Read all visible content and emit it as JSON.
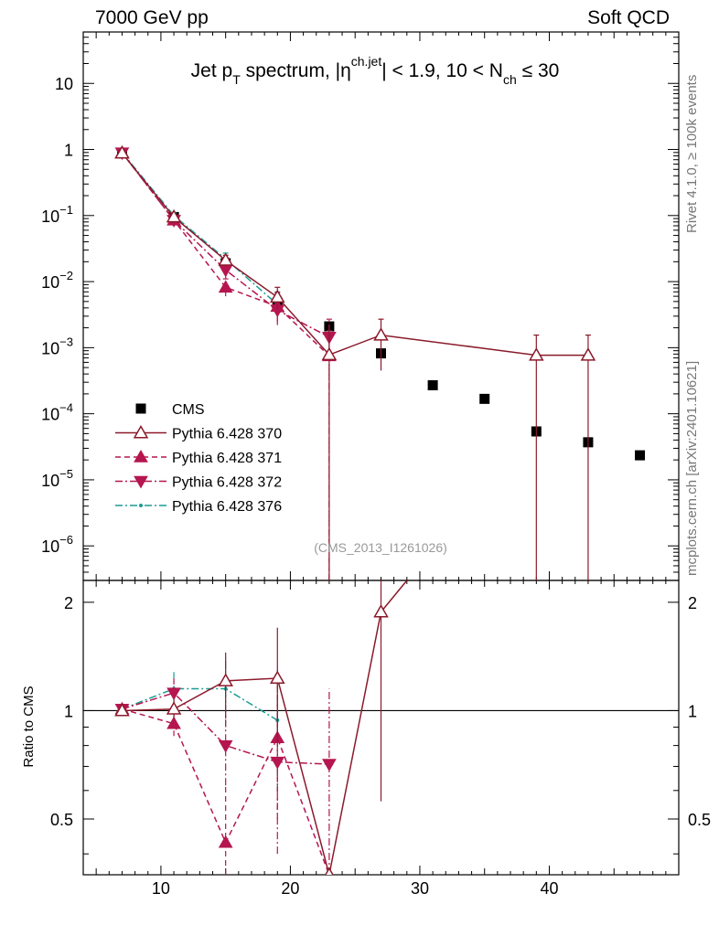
{
  "header": {
    "left": "7000 GeV pp",
    "right": "Soft QCD"
  },
  "side_labels": {
    "top": "Rivet 4.1.0, ≥ 100k events",
    "bottom": "mcplots.cern.ch [arXiv:2401.10621]"
  },
  "chart_data": {
    "type": "scatter",
    "title_parts": {
      "a": "Jet p",
      "a_sub": "T",
      "b": " spectrum, |η",
      "b_sup": "ch.jet",
      "c": "| < 1.9, 10 < N",
      "c_sub": "ch",
      "d": " ≤ 30"
    },
    "watermark": "(CMS_2013_I1261026)",
    "ratio_ylabel": "Ratio to CMS",
    "xlim": [
      4,
      50
    ],
    "ylim_main": [
      3e-07,
      60
    ],
    "ylim_ratio": [
      0.35,
      2.3
    ],
    "x_ticks": [
      10,
      20,
      30,
      40
    ],
    "y_ticks_main": [
      {
        "v": 10,
        "base": "10",
        "exp": ""
      },
      {
        "v": 1,
        "base": "1",
        "exp": ""
      },
      {
        "v": 0.1,
        "base": "10",
        "exp": "−1"
      },
      {
        "v": 0.01,
        "base": "10",
        "exp": "−2"
      },
      {
        "v": 0.001,
        "base": "10",
        "exp": "−3"
      },
      {
        "v": 0.0001,
        "base": "10",
        "exp": "−4"
      },
      {
        "v": 1e-05,
        "base": "10",
        "exp": "−5"
      },
      {
        "v": 1e-06,
        "base": "10",
        "exp": "−6"
      }
    ],
    "y_ticks_ratio": [
      {
        "v": 0.5,
        "label": "0.5"
      },
      {
        "v": 1,
        "label": "1"
      },
      {
        "v": 2,
        "label": "2"
      }
    ],
    "legend": [
      {
        "series": "cms",
        "label": "CMS"
      },
      {
        "series": "p370",
        "label": "Pythia 6.428 370"
      },
      {
        "series": "p371",
        "label": "Pythia 6.428 371"
      },
      {
        "series": "p372",
        "label": "Pythia 6.428 372"
      },
      {
        "series": "p376",
        "label": "Pythia 6.428 376"
      }
    ],
    "cms": {
      "x": [
        7,
        11,
        15,
        19,
        23,
        27,
        31,
        35,
        39,
        43,
        47
      ],
      "y": [
        0.88,
        0.095,
        0.019,
        0.0048,
        0.0021,
        0.00082,
        0.00027,
        0.000168,
        5.4e-05,
        3.7e-05,
        2.35e-05
      ]
    },
    "series": [
      {
        "id": "p370",
        "color": "#8b1a2b",
        "marker": "triangle-open",
        "dash": "",
        "x": [
          7,
          11,
          15,
          19,
          23,
          27,
          39,
          43
        ],
        "y": [
          0.88,
          0.095,
          0.021,
          0.0058,
          0.00078,
          0.00155,
          0.00077,
          0.00077
        ],
        "ylo": [
          0.8,
          0.085,
          0.017,
          0.0038,
          1e-07,
          0.00045,
          1e-07,
          1e-07
        ],
        "yhi": [
          0.96,
          0.105,
          0.025,
          0.0082,
          0.0018,
          0.0027,
          0.00155,
          0.00155
        ],
        "ratio": [
          1.0,
          1.01,
          1.21,
          1.23,
          0.34,
          1.88,
          2.6
        ],
        "ratio_x": [
          7,
          11,
          15,
          19,
          23,
          27,
          29
        ],
        "ratio_lo": [
          0.97,
          0.95,
          0.95,
          0.82,
          0.3,
          0.56,
          2.6
        ],
        "ratio_hi": [
          1.03,
          1.08,
          1.45,
          1.7,
          0.34,
          2.3,
          2.6
        ]
      },
      {
        "id": "p371",
        "color": "#b5164f",
        "marker": "triangle-up",
        "dash": "6,4",
        "x": [
          7,
          11,
          15,
          19,
          23
        ],
        "y": [
          0.9,
          0.085,
          0.0082,
          0.0042,
          0.00075
        ],
        "ylo": [
          0.82,
          0.075,
          0.006,
          0.0025,
          1e-07
        ],
        "yhi": [
          0.98,
          0.095,
          0.011,
          0.0068,
          0.0016
        ],
        "ratio": [
          1.01,
          0.92,
          0.43,
          0.84,
          0.34
        ],
        "ratio_x": [
          7,
          11,
          15,
          19,
          23
        ],
        "ratio_lo": [
          0.98,
          0.85,
          0.35,
          0.5,
          0.3
        ],
        "ratio_hi": [
          1.04,
          1.0,
          0.62,
          1.2,
          0.34
        ]
      },
      {
        "id": "p372",
        "color": "#b5164f",
        "marker": "triangle-down",
        "dash": "8,3,2,3",
        "x": [
          7,
          11,
          15,
          19,
          23
        ],
        "y": [
          0.89,
          0.085,
          0.015,
          0.0037,
          0.00145
        ],
        "ylo": [
          0.81,
          0.075,
          0.011,
          0.0022,
          1e-07
        ],
        "yhi": [
          0.97,
          0.095,
          0.019,
          0.006,
          0.0027
        ],
        "ratio": [
          1.01,
          1.12,
          0.8,
          0.72,
          0.71
        ],
        "ratio_x": [
          7,
          11,
          15,
          19,
          23
        ],
        "ratio_lo": [
          0.98,
          0.98,
          0.62,
          0.4,
          0.3
        ],
        "ratio_hi": [
          1.04,
          1.23,
          1.0,
          1.05,
          1.15
        ]
      },
      {
        "id": "p376",
        "color": "#1a9b93",
        "marker": "dot",
        "dash": "8,3,2,3",
        "x": [
          7,
          11,
          15,
          19
        ],
        "y": [
          0.9,
          0.1,
          0.022,
          0.0045
        ],
        "ylo": [
          0.82,
          0.09,
          0.017,
          0.0028
        ],
        "yhi": [
          0.98,
          0.11,
          0.027,
          0.007
        ],
        "ratio": [
          1.01,
          1.15,
          1.15,
          0.94
        ],
        "ratio_x": [
          7,
          11,
          15,
          19
        ],
        "ratio_lo": [
          0.98,
          1.02,
          0.9,
          0.6
        ],
        "ratio_hi": [
          1.04,
          1.28,
          1.4,
          1.3
        ]
      }
    ]
  }
}
